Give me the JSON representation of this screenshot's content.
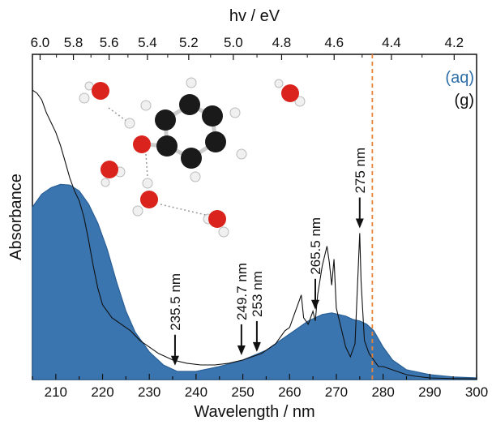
{
  "chart_data": {
    "type": "area",
    "xlabel": "Wavelength / nm",
    "ylabel": "Absorbance",
    "top_xlabel": "hv / eV",
    "xlim": [
      205,
      300
    ],
    "ylim": [
      0,
      1.0
    ],
    "x_ticks": [
      210,
      220,
      230,
      240,
      250,
      260,
      270,
      280,
      290,
      300
    ],
    "top_ticks": [
      "6.0",
      "5.8",
      "5.6",
      "5.4",
      "5.2",
      "5.0",
      "4.8",
      "4.6",
      "4.4",
      "4.2"
    ],
    "legend": [
      {
        "label": "(aq)",
        "color": "#2e6ea8"
      },
      {
        "label": "(g)",
        "color": "#111111"
      }
    ],
    "series": [
      {
        "name": "(aq)",
        "style": "filled",
        "color": "#3a75b0",
        "x": [
          205,
          207,
          209,
          211,
          213,
          215,
          217,
          219,
          221,
          223,
          225,
          227,
          230,
          233,
          236,
          240,
          245,
          250,
          255,
          258,
          261,
          264,
          267,
          269,
          270.5,
          272,
          273.5,
          275,
          276.5,
          278,
          280,
          282,
          285,
          290,
          295,
          300
        ],
        "y": [
          0.53,
          0.57,
          0.59,
          0.6,
          0.598,
          0.58,
          0.54,
          0.48,
          0.4,
          0.3,
          0.21,
          0.145,
          0.085,
          0.045,
          0.025,
          0.025,
          0.04,
          0.06,
          0.09,
          0.12,
          0.15,
          0.18,
          0.2,
          0.205,
          0.2,
          0.195,
          0.185,
          0.18,
          0.17,
          0.15,
          0.1,
          0.06,
          0.03,
          0.015,
          0.008,
          0.005
        ]
      },
      {
        "name": "(g)",
        "style": "line",
        "color": "#111111",
        "x": [
          205,
          206,
          207,
          208,
          209,
          210,
          211,
          212,
          213,
          214,
          215,
          216,
          217,
          218,
          219,
          220,
          222,
          224,
          226,
          228,
          230,
          232,
          235,
          238,
          241,
          244,
          247,
          250,
          252,
          254,
          255,
          256,
          257,
          258,
          259,
          260,
          261,
          262,
          262.5,
          263,
          264,
          265,
          265.5,
          266,
          267,
          268,
          268.5,
          269,
          269.5,
          270,
          271,
          272,
          273,
          274,
          274.7,
          275,
          275.3,
          276,
          277,
          278,
          279,
          280,
          281,
          282,
          283,
          284,
          285,
          287,
          290,
          295,
          300
        ],
        "y": [
          0.89,
          0.88,
          0.86,
          0.82,
          0.79,
          0.76,
          0.72,
          0.67,
          0.62,
          0.58,
          0.55,
          0.5,
          0.43,
          0.35,
          0.28,
          0.23,
          0.19,
          0.17,
          0.15,
          0.12,
          0.1,
          0.08,
          0.06,
          0.05,
          0.045,
          0.045,
          0.05,
          0.06,
          0.07,
          0.08,
          0.09,
          0.1,
          0.11,
          0.13,
          0.15,
          0.16,
          0.2,
          0.24,
          0.26,
          0.19,
          0.17,
          0.21,
          0.18,
          0.26,
          0.35,
          0.41,
          0.36,
          0.29,
          0.37,
          0.22,
          0.16,
          0.1,
          0.07,
          0.11,
          0.35,
          0.45,
          0.3,
          0.12,
          0.08,
          0.06,
          0.04,
          0.04,
          0.035,
          0.03,
          0.025,
          0.02,
          0.015,
          0.01,
          0.005,
          0.003,
          0.002
        ]
      }
    ],
    "threshold_line": {
      "x": 277.7,
      "color": "#e8843a"
    },
    "annotations": [
      {
        "text": "235.5 nm",
        "x": 235.5,
        "y": 0.028
      },
      {
        "text": "249.7 nm",
        "x": 249.7,
        "y": 0.06
      },
      {
        "text": "253 nm",
        "x": 253,
        "y": 0.07
      },
      {
        "text": "265.5 nm",
        "x": 265.5,
        "y": 0.2
      },
      {
        "text": "275 nm",
        "x": 275,
        "y": 0.45
      }
    ]
  }
}
